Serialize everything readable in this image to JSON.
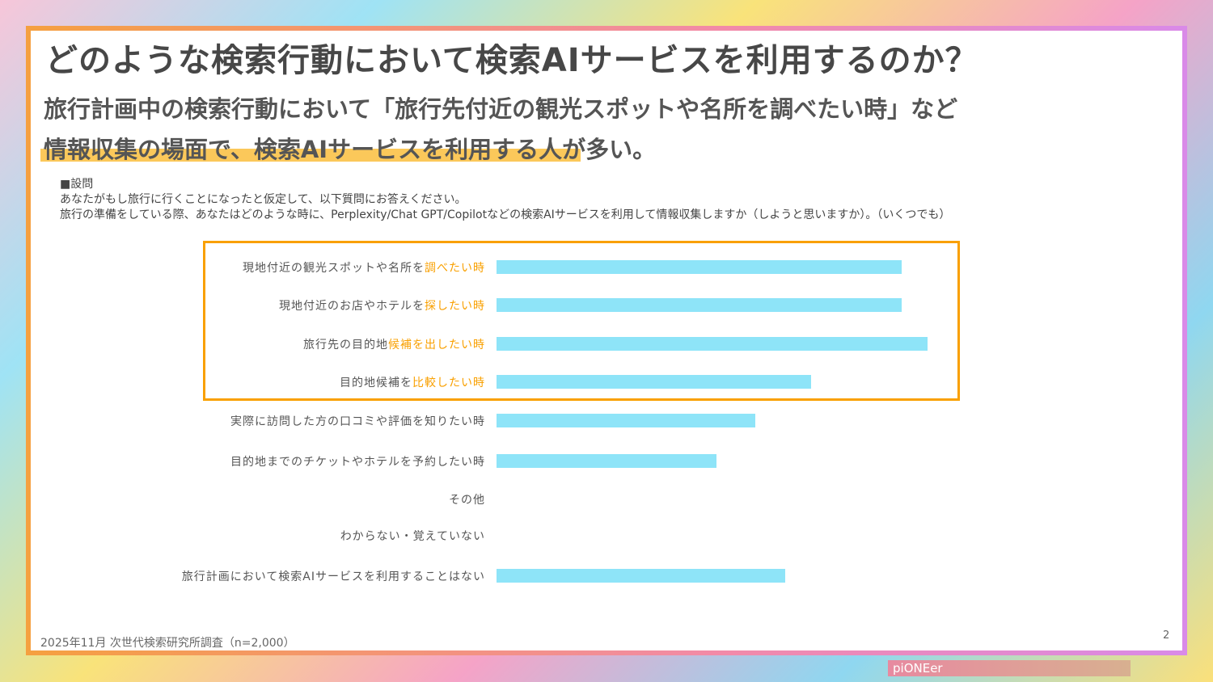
{
  "title": "どのような検索行動において検索AIサービスを利用するのか？",
  "subtitle": {
    "line1": "旅行計画中の検索行動において「旅行先付近の観光スポットや名所を調べたい時」など",
    "line2": "情報収集の場面で、検索AIサービスを利用する人が多い。"
  },
  "question": {
    "heading": "■設問",
    "line1": "あなたがもし旅行に行くことになったと仮定して、以下質問にお答えください。",
    "line2": "旅行の準備をしている際、あなたはどのような時に、Perplexity/Chat GPT/Copilotなどの検索AIサービスを利用して情報収集しますか（しようと思いますか）。（いくつでも）"
  },
  "chart_data": {
    "type": "bar",
    "orientation": "horizontal",
    "value_scale": "relative (no axis shown; fraction of largest bar)",
    "categories": [
      {
        "pre": "現地付近の観光スポットや名所を",
        "emph": "調べたい時"
      },
      {
        "pre": "現地付近のお店やホテルを",
        "emph": "探したい時"
      },
      {
        "pre": "旅行先の目的地",
        "emph": "候補を出したい時"
      },
      {
        "pre": "目的地候補を",
        "emph": "比較したい時"
      },
      {
        "pre": "実際に訪問した方の口コミや評価を知りたい時",
        "emph": ""
      },
      {
        "pre": "目的地までのチケットやホテルを予約したい時",
        "emph": ""
      },
      {
        "pre": "その他",
        "emph": ""
      },
      {
        "pre": "わからない・覚えていない",
        "emph": ""
      },
      {
        "pre": "旅行計画において検索AIサービスを利用することはない",
        "emph": ""
      }
    ],
    "values": [
      0.94,
      0.94,
      1.0,
      0.73,
      0.6,
      0.51,
      0,
      0,
      0.67
    ],
    "highlighted_rows": [
      0,
      1,
      2,
      3
    ],
    "bar_color": "#8ee4f8",
    "highlight_color": "#f9a000"
  },
  "footer": {
    "source": "2025年11月 次世代検索研究所調査（n=2,000）",
    "page": "2",
    "brand": "piONEer"
  }
}
